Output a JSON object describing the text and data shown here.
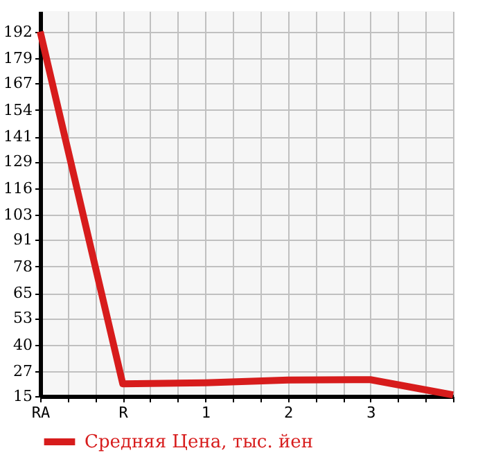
{
  "chart_data": {
    "type": "line",
    "categories": [
      "RA",
      "R",
      "1",
      "2",
      "3",
      null
    ],
    "series": [
      {
        "name": "Средняя Цена, тыс. йен",
        "color": "#d71c1c",
        "values": [
          192,
          21,
          21.5,
          22.8,
          23,
          15.6
        ]
      }
    ],
    "ylim": [
      15,
      202
    ],
    "yticks": [
      15,
      27,
      40,
      53,
      65,
      78,
      91,
      103,
      116,
      129,
      141,
      154,
      167,
      179,
      192
    ],
    "grid": true,
    "legend": "bottom",
    "marker": "none",
    "line_style": "solid"
  }
}
